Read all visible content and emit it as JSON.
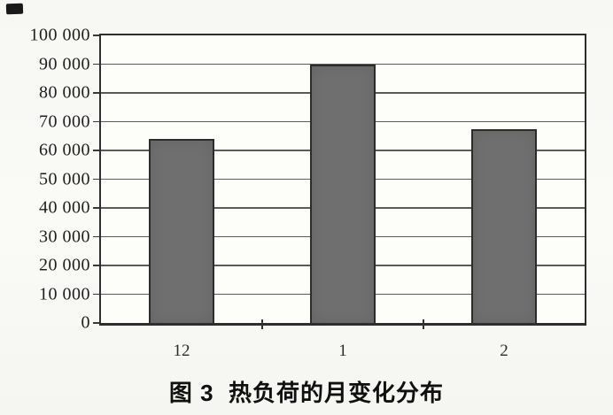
{
  "figure": {
    "caption": "图 3  热负荷的月变化分布"
  },
  "chart_data": {
    "type": "bar",
    "title": "图 3  热负荷的月变化分布",
    "categories": [
      "12",
      "1",
      "2"
    ],
    "values": [
      64000,
      90000,
      67500
    ],
    "xlabel": "",
    "ylabel": "",
    "ylim": [
      0,
      100000
    ],
    "ytick_step": 10000,
    "ytick_labels": [
      "0",
      "10 000",
      "20 000",
      "30 000",
      "40 000",
      "50 000",
      "60 000",
      "70 000",
      "80 000",
      "90 000",
      "100 000"
    ],
    "grid": "horizontal",
    "legend": "none",
    "bar_color": "#6f6f6f",
    "bar_border_color": "#2c2c2c",
    "gridline_color": "#3d3d3d",
    "axis_color": "#2e2e2e",
    "plot_background": "#fdfdfa",
    "page_background": "#f8f8f5"
  }
}
